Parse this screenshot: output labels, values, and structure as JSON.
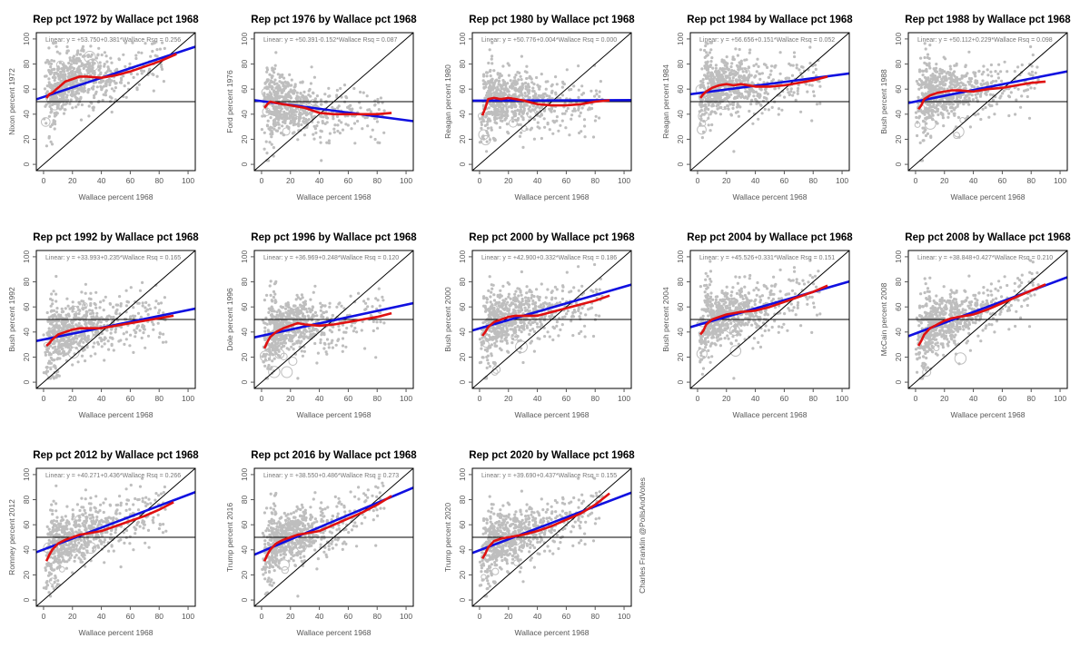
{
  "credit": "Charles Franklin @PollsAndVotes",
  "colors": {
    "points": "#bebebe",
    "fit_line": "#1010e0",
    "smooth_line": "#e01010",
    "reference": "#000000"
  },
  "chart_data": [
    {
      "type": "scatter",
      "title": "Rep pct 1972 by Wallace pct 1968",
      "xlabel": "Wallace percent 1968",
      "ylabel": "Nixon percent 1972",
      "xlim": [
        0,
        100
      ],
      "ylim": [
        0,
        100
      ],
      "xticks": [
        0,
        20,
        40,
        60,
        80,
        100
      ],
      "yticks": [
        0,
        20,
        40,
        60,
        80,
        100
      ],
      "hline": 50,
      "diagonal": true,
      "fit": {
        "label": "Linear: y = +53.750+0.381*Wallace  Rsq = 0.256",
        "intercept": 53.75,
        "slope": 0.381
      },
      "smooth": {
        "x": [
          2,
          4,
          6,
          10,
          15,
          20,
          25,
          30,
          40,
          50,
          60,
          70,
          80,
          88,
          92
        ],
        "y": [
          53,
          56,
          57,
          61,
          66,
          68,
          70,
          70,
          69,
          71,
          74,
          78,
          82,
          86,
          88
        ]
      }
    },
    {
      "type": "scatter",
      "title": "Rep pct 1976 by Wallace pct 1968",
      "xlabel": "Wallace percent 1968",
      "ylabel": "Ford percent 1976",
      "xlim": [
        0,
        100
      ],
      "ylim": [
        0,
        100
      ],
      "xticks": [
        0,
        20,
        40,
        60,
        80,
        100
      ],
      "yticks": [
        0,
        20,
        40,
        60,
        80,
        100
      ],
      "hline": 50,
      "diagonal": true,
      "fit": {
        "label": "Linear: y = +50.391-0.152*Wallace  Rsq = 0.087",
        "intercept": 50.391,
        "slope": -0.152
      },
      "smooth": {
        "x": [
          2,
          4,
          6,
          10,
          15,
          20,
          25,
          30,
          40,
          50,
          60,
          70,
          80,
          90
        ],
        "y": [
          45,
          48,
          50,
          49,
          48,
          47,
          46,
          45,
          41,
          40,
          40,
          40,
          40,
          41
        ]
      }
    },
    {
      "type": "scatter",
      "title": "Rep pct 1980 by Wallace pct 1968",
      "xlabel": "Wallace percent 1968",
      "ylabel": "Reagan percent 1980",
      "xlim": [
        0,
        100
      ],
      "ylim": [
        0,
        100
      ],
      "xticks": [
        0,
        20,
        40,
        60,
        80,
        100
      ],
      "yticks": [
        0,
        20,
        40,
        60,
        80,
        100
      ],
      "hline": 50,
      "diagonal": true,
      "fit": {
        "label": "Linear: y = +50.776+0.004*Wallace  Rsq = 0.000",
        "intercept": 50.776,
        "slope": 0.004
      },
      "smooth": {
        "x": [
          2,
          4,
          6,
          10,
          15,
          20,
          25,
          30,
          40,
          50,
          60,
          70,
          80,
          90
        ],
        "y": [
          39,
          45,
          52,
          53,
          52,
          53,
          52,
          51,
          48,
          47,
          47,
          48,
          50,
          51
        ]
      }
    },
    {
      "type": "scatter",
      "title": "Rep pct 1984 by Wallace pct 1968",
      "xlabel": "Wallace percent 1968",
      "ylabel": "Reagan percent 1984",
      "xlim": [
        0,
        100
      ],
      "ylim": [
        0,
        100
      ],
      "xticks": [
        0,
        20,
        40,
        60,
        80,
        100
      ],
      "yticks": [
        0,
        20,
        40,
        60,
        80,
        100
      ],
      "hline": 50,
      "diagonal": true,
      "fit": {
        "label": "Linear: y = +56.656+0.151*Wallace  Rsq = 0.052",
        "intercept": 56.656,
        "slope": 0.151
      },
      "smooth": {
        "x": [
          2,
          4,
          6,
          10,
          15,
          20,
          25,
          30,
          40,
          50,
          60,
          70,
          80,
          90
        ],
        "y": [
          53,
          56,
          58,
          61,
          63,
          64,
          63,
          64,
          62,
          62,
          63,
          65,
          67,
          70
        ]
      }
    },
    {
      "type": "scatter",
      "title": "Rep pct 1988 by Wallace pct 1968",
      "xlabel": "Wallace percent 1968",
      "ylabel": "Bush percent 1988",
      "xlim": [
        0,
        100
      ],
      "ylim": [
        0,
        100
      ],
      "xticks": [
        0,
        20,
        40,
        60,
        80,
        100
      ],
      "yticks": [
        0,
        20,
        40,
        60,
        80,
        100
      ],
      "hline": 50,
      "diagonal": true,
      "fit": {
        "label": "Linear: y = +50.112+0.229*Wallace  Rsq = 0.098",
        "intercept": 50.112,
        "slope": 0.229
      },
      "smooth": {
        "x": [
          2,
          4,
          6,
          10,
          15,
          20,
          25,
          30,
          40,
          50,
          60,
          70,
          80,
          90
        ],
        "y": [
          44,
          47,
          52,
          55,
          57,
          58,
          59,
          59,
          58,
          60,
          61,
          63,
          65,
          66
        ]
      }
    },
    {
      "type": "scatter",
      "title": "Rep pct 1992 by Wallace pct 1968",
      "xlabel": "Wallace percent 1968",
      "ylabel": "Bush percent 1992",
      "xlim": [
        0,
        100
      ],
      "ylim": [
        0,
        100
      ],
      "xticks": [
        0,
        20,
        40,
        60,
        80,
        100
      ],
      "yticks": [
        0,
        20,
        40,
        60,
        80,
        100
      ],
      "hline": 50,
      "diagonal": true,
      "fit": {
        "label": "Linear: y = +33.993+0.235*Wallace  Rsq = 0.165",
        "intercept": 33.993,
        "slope": 0.235
      },
      "smooth": {
        "x": [
          2,
          4,
          6,
          10,
          15,
          20,
          25,
          30,
          40,
          50,
          60,
          70,
          80,
          90
        ],
        "y": [
          29,
          31,
          34,
          38,
          40,
          42,
          43,
          43,
          43,
          45,
          47,
          49,
          51,
          53
        ]
      }
    },
    {
      "type": "scatter",
      "title": "Rep pct 1996 by Wallace pct 1968",
      "xlabel": "Wallace percent 1968",
      "ylabel": "Dole percent 1996",
      "xlim": [
        0,
        100
      ],
      "ylim": [
        0,
        100
      ],
      "xticks": [
        0,
        20,
        40,
        60,
        80,
        100
      ],
      "yticks": [
        0,
        20,
        40,
        60,
        80,
        100
      ],
      "hline": 50,
      "diagonal": true,
      "fit": {
        "label": "Linear: y = +36.969+0.248*Wallace  Rsq = 0.120",
        "intercept": 36.969,
        "slope": 0.248
      },
      "smooth": {
        "x": [
          2,
          4,
          6,
          10,
          15,
          20,
          25,
          30,
          40,
          50,
          60,
          70,
          80,
          90
        ],
        "y": [
          27,
          32,
          36,
          40,
          43,
          45,
          47,
          46,
          45,
          46,
          48,
          50,
          52,
          55
        ]
      }
    },
    {
      "type": "scatter",
      "title": "Rep pct 2000 by Wallace pct 1968",
      "xlabel": "Wallace percent 1968",
      "ylabel": "Bush percent 2000",
      "xlim": [
        0,
        100
      ],
      "ylim": [
        0,
        100
      ],
      "xticks": [
        0,
        20,
        40,
        60,
        80,
        100
      ],
      "yticks": [
        0,
        20,
        40,
        60,
        80,
        100
      ],
      "hline": 50,
      "diagonal": true,
      "fit": {
        "label": "Linear: y = +42.900+0.332*Wallace  Rsq = 0.186",
        "intercept": 42.9,
        "slope": 0.332
      },
      "smooth": {
        "x": [
          2,
          4,
          6,
          10,
          15,
          20,
          25,
          30,
          40,
          50,
          60,
          70,
          80,
          90
        ],
        "y": [
          37,
          40,
          44,
          48,
          50,
          52,
          53,
          53,
          53,
          56,
          59,
          62,
          65,
          69
        ]
      }
    },
    {
      "type": "scatter",
      "title": "Rep pct 2004 by Wallace pct 1968",
      "xlabel": "Wallace percent 1968",
      "ylabel": "Bush percent 2004",
      "xlim": [
        0,
        100
      ],
      "ylim": [
        0,
        100
      ],
      "xticks": [
        0,
        20,
        40,
        60,
        80,
        100
      ],
      "yticks": [
        0,
        20,
        40,
        60,
        80,
        100
      ],
      "hline": 50,
      "diagonal": true,
      "fit": {
        "label": "Linear: y = +45.526+0.331*Wallace  Rsq = 0.151",
        "intercept": 45.526,
        "slope": 0.331
      },
      "smooth": {
        "x": [
          2,
          4,
          6,
          10,
          15,
          20,
          25,
          30,
          40,
          50,
          60,
          70,
          80,
          90
        ],
        "y": [
          38,
          41,
          46,
          50,
          52,
          54,
          55,
          56,
          57,
          60,
          64,
          68,
          72,
          77
        ]
      }
    },
    {
      "type": "scatter",
      "title": "Rep pct 2008 by Wallace pct 1968",
      "xlabel": "Wallace percent 1968",
      "ylabel": "McCain percent 2008",
      "xlim": [
        0,
        100
      ],
      "ylim": [
        0,
        100
      ],
      "xticks": [
        0,
        20,
        40,
        60,
        80,
        100
      ],
      "yticks": [
        0,
        20,
        40,
        60,
        80,
        100
      ],
      "hline": 50,
      "diagonal": true,
      "fit": {
        "label": "Linear: y = +38.848+0.427*Wallace  Rsq = 0.210",
        "intercept": 38.848,
        "slope": 0.427
      },
      "smooth": {
        "x": [
          2,
          4,
          6,
          10,
          15,
          20,
          25,
          30,
          40,
          50,
          60,
          70,
          80,
          90
        ],
        "y": [
          29,
          33,
          38,
          43,
          46,
          49,
          51,
          52,
          54,
          58,
          63,
          68,
          73,
          78
        ]
      }
    },
    {
      "type": "scatter",
      "title": "Rep pct 2012 by Wallace pct 1968",
      "xlabel": "Wallace percent 1968",
      "ylabel": "Romney percent 2012",
      "xlim": [
        0,
        100
      ],
      "ylim": [
        0,
        100
      ],
      "xticks": [
        0,
        20,
        40,
        60,
        80,
        100
      ],
      "yticks": [
        0,
        20,
        40,
        60,
        80,
        100
      ],
      "hline": 50,
      "diagonal": true,
      "fit": {
        "label": "Linear: y = +40.271+0.436*Wallace  Rsq = 0.266",
        "intercept": 40.271,
        "slope": 0.436
      },
      "smooth": {
        "x": [
          2,
          4,
          6,
          10,
          15,
          20,
          25,
          30,
          40,
          50,
          60,
          70,
          80,
          90
        ],
        "y": [
          31,
          36,
          40,
          45,
          48,
          50,
          52,
          53,
          55,
          59,
          63,
          67,
          72,
          78
        ]
      }
    },
    {
      "type": "scatter",
      "title": "Rep pct 2016 by Wallace pct 1968",
      "xlabel": "Wallace percent 1968",
      "ylabel": "Trump percent 2016",
      "xlim": [
        0,
        100
      ],
      "ylim": [
        0,
        100
      ],
      "xticks": [
        0,
        20,
        40,
        60,
        80,
        100
      ],
      "yticks": [
        0,
        20,
        40,
        60,
        80,
        100
      ],
      "hline": 50,
      "diagonal": true,
      "fit": {
        "label": "Linear: y = +38.550+0.486*Wallace  Rsq = 0.273",
        "intercept": 38.55,
        "slope": 0.486
      },
      "smooth": {
        "x": [
          2,
          4,
          6,
          10,
          15,
          20,
          25,
          30,
          40,
          50,
          60,
          70,
          80,
          90
        ],
        "y": [
          31,
          36,
          40,
          45,
          48,
          50,
          52,
          53,
          55,
          60,
          65,
          70,
          76,
          83
        ]
      }
    },
    {
      "type": "scatter",
      "title": "Rep pct 2020 by Wallace pct 1968",
      "xlabel": "Wallace percent 1968",
      "ylabel": "Trump percent 2020",
      "xlim": [
        0,
        100
      ],
      "ylim": [
        0,
        100
      ],
      "xticks": [
        0,
        20,
        40,
        60,
        80,
        100
      ],
      "yticks": [
        0,
        20,
        40,
        60,
        80,
        100
      ],
      "hline": 50,
      "diagonal": true,
      "fit": {
        "label": "Linear: y = +39.690+0.437*Wallace  Rsq = 0.155",
        "intercept": 39.69,
        "slope": 0.437
      },
      "smooth": {
        "x": [
          2,
          4,
          6,
          10,
          15,
          20,
          25,
          30,
          40,
          50,
          60,
          70,
          80,
          90
        ],
        "y": [
          33,
          37,
          42,
          47,
          49,
          50,
          51,
          52,
          55,
          59,
          64,
          69,
          76,
          85
        ]
      }
    }
  ]
}
